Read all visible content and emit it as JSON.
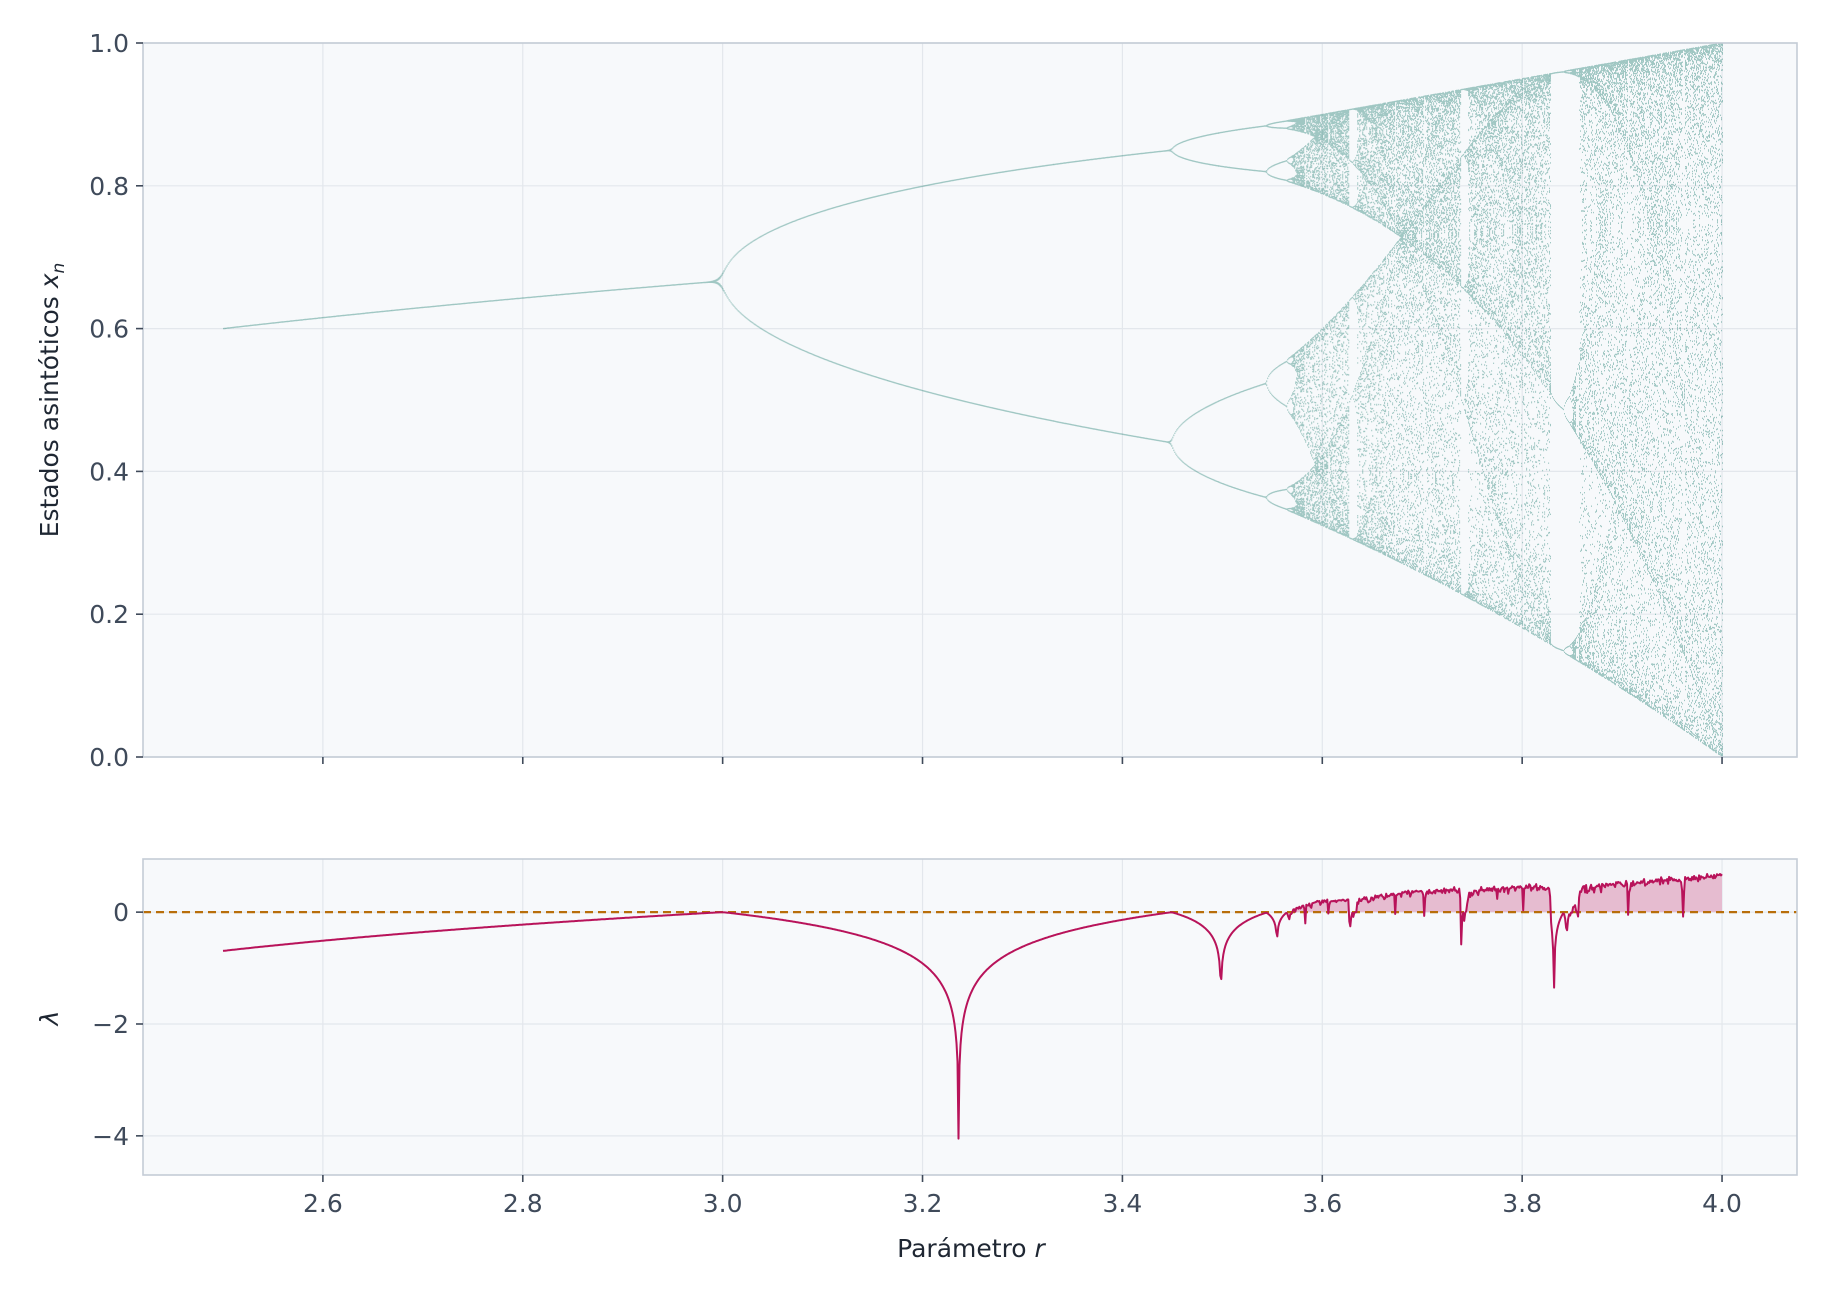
{
  "colors": {
    "panel_background": "#f7f9fb",
    "grid": "#e3e7ec",
    "spine": "#c4ccd6",
    "bifurcation_points": "#107566",
    "lyapunov_line": "#b8135a",
    "lyapunov_fill": "#e6bcd0",
    "zero_line": "#b86e0a",
    "tick_text": "#3f4a5a"
  },
  "chart_data": [
    {
      "type": "scatter",
      "description_source": "logistic map bifurcation diagram",
      "map": "x_{n+1} = r x_n (1 - x_n)",
      "r_range": [
        2.5,
        4.0
      ],
      "xlim": [
        2.42,
        4.075
      ],
      "ylim": [
        0.0,
        1.0
      ],
      "xticks": [
        2.6,
        2.8,
        3.0,
        3.2,
        3.4,
        3.6,
        3.8,
        4.0
      ],
      "yticks": [
        "0.0",
        "0.2",
        "0.4",
        "0.6",
        "0.8",
        "1.0"
      ],
      "ylabel": "Estados asintóticos",
      "ylabel_var": "x",
      "ylabel_sub": "n",
      "xlabel": "",
      "grid": true,
      "key_points": [
        {
          "r": 2.5,
          "x": [
            0.6
          ]
        },
        {
          "r": 3.0,
          "x": [
            0.667
          ]
        },
        {
          "r": 3.45,
          "x": [
            0.44,
            0.85
          ]
        },
        {
          "r": 3.83,
          "x": [
            0.16,
            0.5,
            0.96
          ]
        },
        {
          "r": 4.0,
          "x_range": [
            0.0,
            1.0
          ]
        }
      ]
    },
    {
      "type": "line",
      "description_source": "Lyapunov exponent of the logistic map",
      "xlim": [
        2.42,
        4.075
      ],
      "ylim": [
        -4.7,
        0.95
      ],
      "xticks": [
        "2.6",
        "2.8",
        "3.0",
        "3.2",
        "3.4",
        "3.6",
        "3.8",
        "4.0"
      ],
      "yticks": [
        0,
        -2,
        -4
      ],
      "ytick_labels": [
        "0",
        "−2",
        "−4"
      ],
      "ylabel": "λ",
      "xlabel": "Parámetro",
      "xlabel_var": "r",
      "reference_line": {
        "y": 0,
        "style": "dashed"
      },
      "fill_positive": true,
      "key_points": [
        {
          "r": 2.5,
          "lambda": -0.69
        },
        {
          "r": 3.0,
          "lambda": 0.0
        },
        {
          "r": 3.236,
          "lambda": -4.5
        },
        {
          "r": 3.449,
          "lambda": 0.0
        },
        {
          "r": 3.5,
          "lambda": -1.7
        },
        {
          "r": 3.83,
          "lambda": -1.25
        },
        {
          "r": 4.0,
          "lambda": 0.69
        }
      ]
    }
  ]
}
